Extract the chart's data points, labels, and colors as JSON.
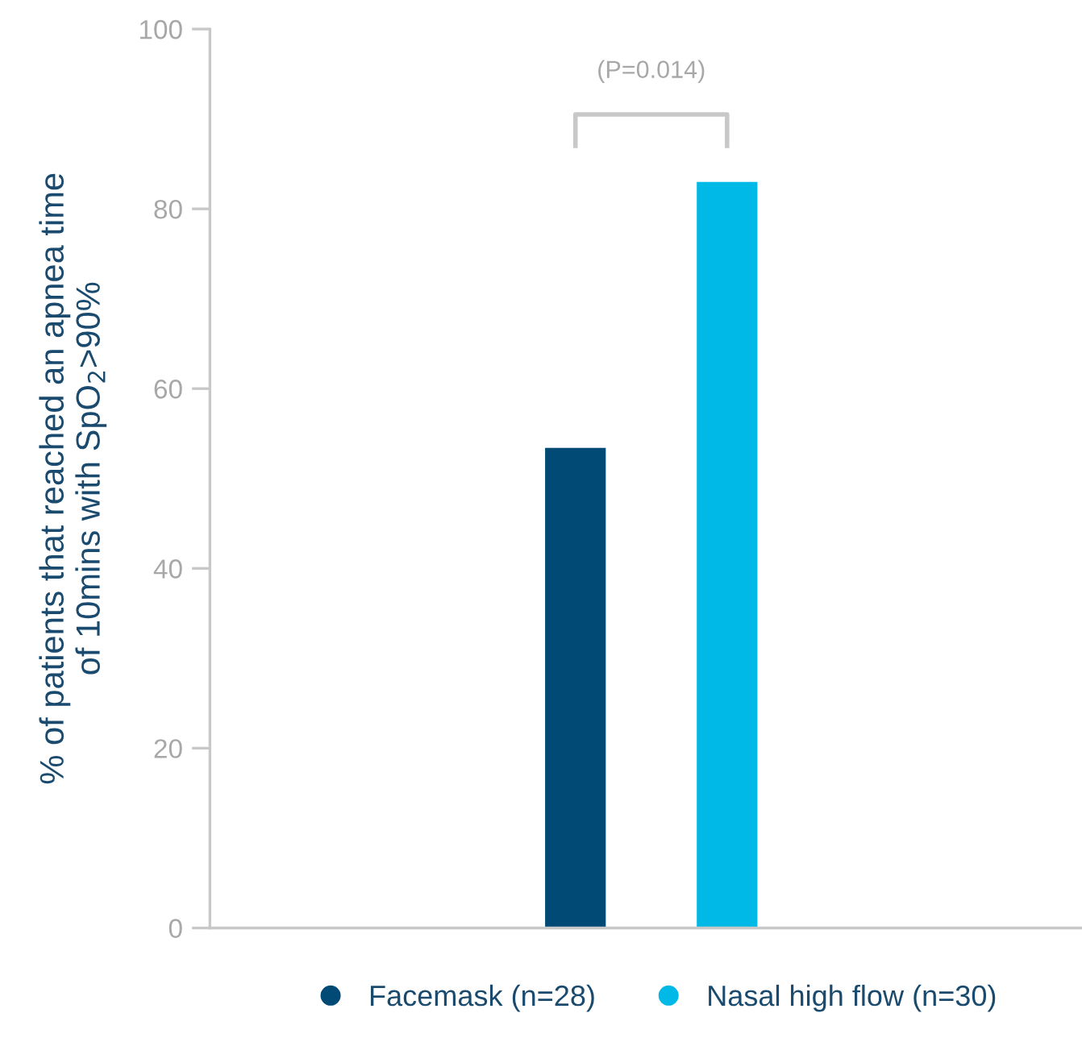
{
  "chart_data": {
    "type": "bar",
    "ylabel": "% of patients that reached an apnea time\nof 10mins with SpO$_{2}$>90%",
    "categories": [
      null,
      null
    ],
    "series": [
      {
        "name": "Facemask (n=28)",
        "color": "#004a75",
        "values": [
          53.4,
          null
        ]
      },
      {
        "name": "Nasal high flow (n=30)",
        "color": "#00b9e6",
        "values": [
          null,
          83.0
        ]
      }
    ],
    "ylim": [
      0,
      100
    ],
    "yticks": [
      0,
      20,
      40,
      60,
      80,
      100
    ],
    "grid": false,
    "legend": "bottom",
    "annotations": [
      "(P=0.014)"
    ]
  }
}
